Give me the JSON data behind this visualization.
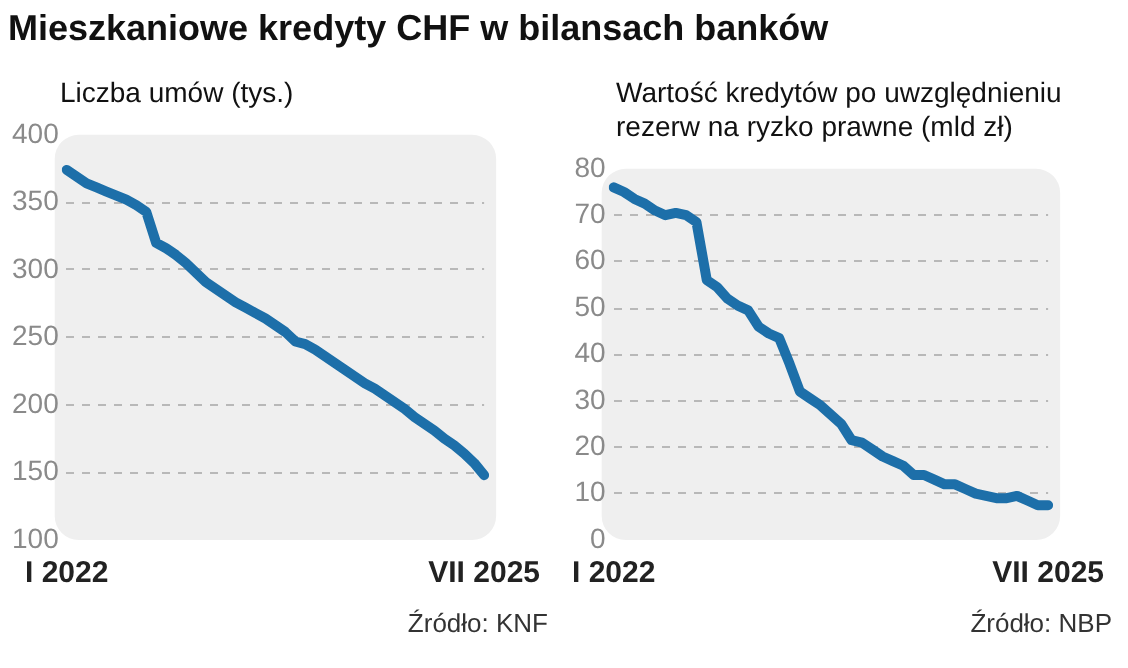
{
  "chart_data": [
    {
      "type": "line",
      "title": "Mieszkaniowe kredyty CHF w bilansach banków",
      "ylabel": "Liczba umów (tys.)",
      "categories": [
        "I 2022",
        null,
        null,
        null,
        null,
        null,
        null,
        null,
        null,
        null,
        null,
        null,
        null,
        null,
        null,
        null,
        null,
        null,
        null,
        null,
        null,
        null,
        null,
        null,
        null,
        null,
        null,
        null,
        null,
        null,
        null,
        null,
        null,
        null,
        null,
        null,
        null,
        null,
        null,
        null,
        null,
        null,
        "VII 2025"
      ],
      "series": [
        {
          "color": "#1d6fa9",
          "values": [
            374,
            369,
            364,
            361,
            358,
            355,
            352,
            348,
            343,
            320,
            316,
            311,
            305,
            298,
            291,
            286,
            281,
            276,
            272,
            268,
            264,
            259,
            254,
            247,
            245,
            241,
            236,
            231,
            226,
            221,
            216,
            212,
            207,
            202,
            197,
            191,
            186,
            181,
            175,
            170,
            164,
            157,
            148
          ]
        }
      ],
      "ylim": [
        100,
        400
      ],
      "yticks": [
        100,
        150,
        200,
        250,
        300,
        350,
        400
      ],
      "grid": "y",
      "annotations": [
        "Źródło: KNF"
      ]
    },
    {
      "type": "line",
      "ylabel": "Wartość kredytów po uwzględnieniu rezerw na ryzko prawne (mld zł)",
      "categories": [
        "I 2022",
        null,
        null,
        null,
        null,
        null,
        null,
        null,
        null,
        null,
        null,
        null,
        null,
        null,
        null,
        null,
        null,
        null,
        null,
        null,
        null,
        null,
        null,
        null,
        null,
        null,
        null,
        null,
        null,
        null,
        null,
        null,
        null,
        null,
        null,
        null,
        null,
        null,
        null,
        null,
        null,
        null,
        "VII 2025"
      ],
      "series": [
        {
          "color": "#1d6fa9",
          "values": [
            76,
            75,
            73.5,
            72.5,
            71,
            70,
            70.5,
            70,
            68.5,
            56,
            54.5,
            52,
            50.5,
            49.5,
            46,
            44.5,
            43.5,
            38,
            32,
            30.5,
            29,
            27,
            25,
            21.5,
            21,
            19.5,
            18,
            17,
            16,
            14,
            14,
            13,
            12,
            12,
            11,
            10,
            9.5,
            9,
            9,
            9.5,
            8.5,
            7.5,
            7.5
          ]
        }
      ],
      "ylim": [
        0,
        80
      ],
      "yticks": [
        0,
        10,
        20,
        30,
        40,
        50,
        60,
        70,
        80
      ],
      "grid": "y",
      "annotations": [
        "Źródło: NBP"
      ]
    }
  ]
}
